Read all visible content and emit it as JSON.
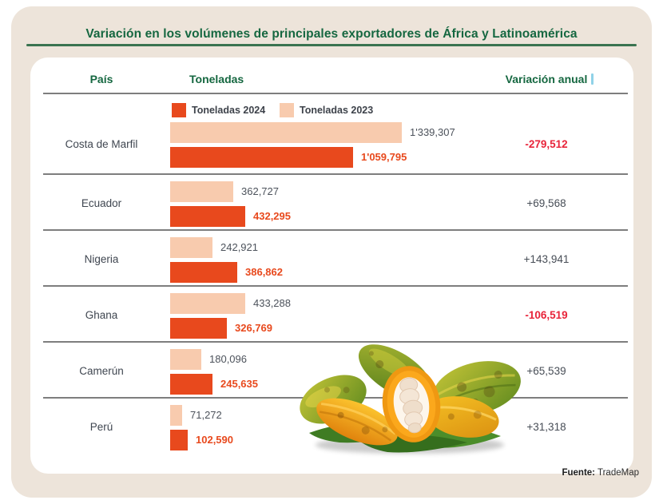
{
  "title": "Variación en los volúmenes de principales exportadores de África y Latinoamérica",
  "table": {
    "col_pais": "País",
    "col_toneladas": "Toneladas",
    "col_variacion": "Variación anual"
  },
  "legend": [
    {
      "label": "Toneladas 2024",
      "color": "#e8491d"
    },
    {
      "label": "Toneladas 2023",
      "color": "#f8cbae"
    }
  ],
  "source": {
    "label": "Fuente:",
    "value": "TradeMap"
  },
  "colors": {
    "accent_orange": "#e8491d",
    "peach": "#f8cbae",
    "green": "#156740",
    "negative_red": "#e8243a",
    "text_gray": "#474d56",
    "divider_gray": "#7e7e7e",
    "background_beige": "#ede4da"
  },
  "chart_data": {
    "type": "bar",
    "orientation": "horizontal",
    "title": "Variación en los volúmenes de principales exportadores de África y Latinoamérica",
    "series_names": [
      "Toneladas 2024",
      "Toneladas 2023"
    ],
    "max_value": 1339307,
    "legend_position": "top",
    "grid": false,
    "rows": [
      {
        "country": "Costa de Marfil",
        "t2023": 1339307,
        "t2023_label": "1'339,307",
        "t2024": 1059795,
        "t2024_label": "1'059,795",
        "variation": -279512,
        "variation_label": "-279,512"
      },
      {
        "country": "Ecuador",
        "t2023": 362727,
        "t2023_label": "362,727",
        "t2024": 432295,
        "t2024_label": "432,295",
        "variation": 69568,
        "variation_label": "+69,568"
      },
      {
        "country": "Nigeria",
        "t2023": 242921,
        "t2023_label": "242,921",
        "t2024": 386862,
        "t2024_label": "386,862",
        "variation": 143941,
        "variation_label": "+143,941"
      },
      {
        "country": "Ghana",
        "t2023": 433288,
        "t2023_label": "433,288",
        "t2024": 326769,
        "t2024_label": "326,769",
        "variation": -106519,
        "variation_label": "-106,519"
      },
      {
        "country": "Camerún",
        "t2023": 180096,
        "t2023_label": "180,096",
        "t2024": 245635,
        "t2024_label": "245,635",
        "variation": 65539,
        "variation_label": "+65,539"
      },
      {
        "country": "Perú",
        "t2023": 71272,
        "t2023_label": "71,272",
        "t2024": 102590,
        "t2024_label": "102,590",
        "variation": 31318,
        "variation_label": "+31,318"
      }
    ]
  }
}
